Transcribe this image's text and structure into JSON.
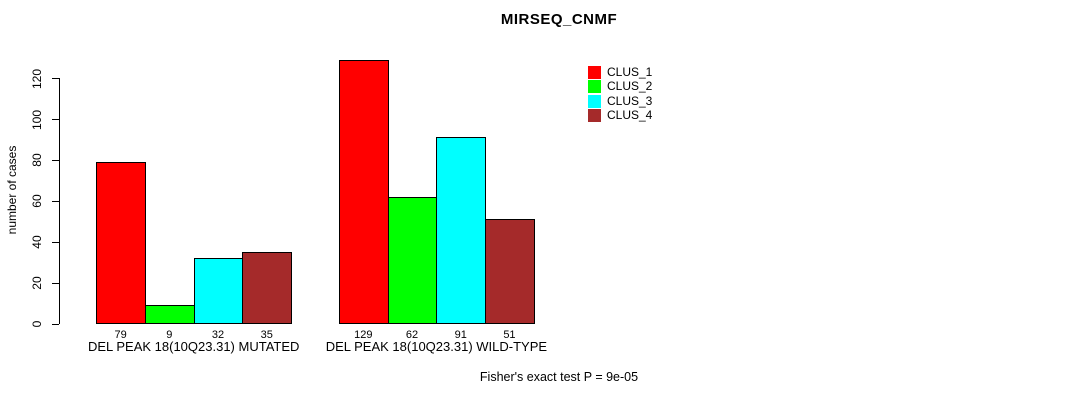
{
  "title": "MIRSEQ_CNMF",
  "y_axis_label": "number of cases",
  "footer_note": "Fisher's exact test P = 9e-05",
  "chart_data": {
    "type": "bar",
    "title": "MIRSEQ_CNMF",
    "xlabel": "",
    "ylabel": "number of cases",
    "categories": [
      "DEL PEAK 18(10Q23.31) MUTATED",
      "DEL PEAK 18(10Q23.31) WILD-TYPE"
    ],
    "series": [
      {
        "name": "CLUS_1",
        "color": "#ff0000",
        "values": [
          79,
          129
        ]
      },
      {
        "name": "CLUS_2",
        "color": "#00ff00",
        "values": [
          9,
          62
        ]
      },
      {
        "name": "CLUS_3",
        "color": "#00ffff",
        "values": [
          32,
          91
        ]
      },
      {
        "name": "CLUS_4",
        "color": "#a52a2a",
        "values": [
          35,
          51
        ]
      }
    ],
    "show_bar_value_labels": true,
    "yticks": [
      0,
      20,
      40,
      60,
      80,
      100,
      120
    ],
    "ylim": [
      0,
      130
    ],
    "grid": false,
    "legend_position": "top-right",
    "annotation": "Fisher's exact test P = 9e-05",
    "background_color": "#ffffff",
    "axis_color": "#000000",
    "text_color": "#000000"
  }
}
